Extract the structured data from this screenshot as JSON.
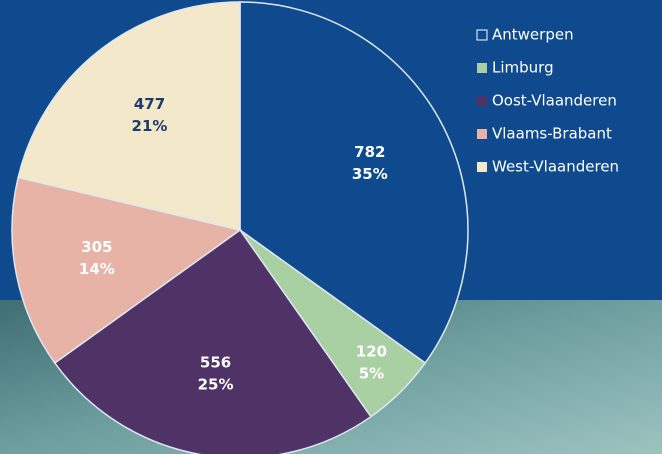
{
  "chart_data": {
    "type": "pie",
    "categories": [
      "Antwerpen",
      "Limburg",
      "Oost-Vlaanderen",
      "Vlaams-Brabant",
      "West-Vlaanderen"
    ],
    "values": [
      782,
      120,
      556,
      305,
      477
    ],
    "percent_labels": [
      "35%",
      "5%",
      "25%",
      "14%",
      "21%"
    ],
    "colors": [
      "#0f4a8e",
      "#a9d0a2",
      "#4f3266",
      "#e6b3a6",
      "#f4e8cb"
    ],
    "label_colors": [
      "#ffffff",
      "#ffffff",
      "#ffffff",
      "#ffffff",
      "#1d3b6e"
    ],
    "legend": "right"
  }
}
